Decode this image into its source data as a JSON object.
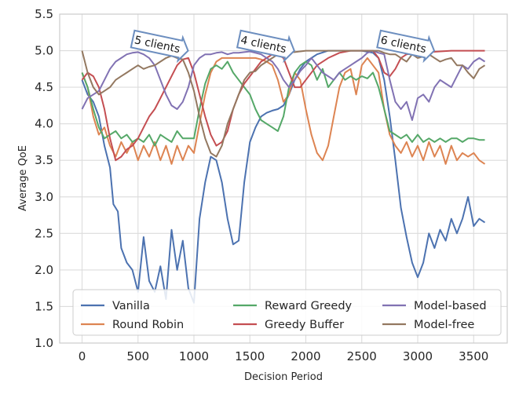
{
  "chart_data": {
    "type": "line",
    "xlabel": "Decision Period",
    "ylabel": "Average QoE",
    "xlim": [
      -200,
      3800
    ],
    "ylim": [
      1.0,
      5.5
    ],
    "xticks": [
      0,
      500,
      1000,
      1500,
      2000,
      2500,
      3000,
      3500
    ],
    "yticks": [
      1.0,
      1.5,
      2.0,
      2.5,
      3.0,
      3.5,
      4.0,
      4.5,
      5.0,
      5.5
    ],
    "grid": true,
    "legend": {
      "placement": "lower-center",
      "columns": 3
    },
    "annotations": [
      {
        "text": "5 clients",
        "x": 700,
        "y": 5.08
      },
      {
        "text": "4 clients",
        "x": 1650,
        "y": 5.08
      },
      {
        "text": "6 clients",
        "x": 2900,
        "y": 5.08
      }
    ],
    "series": [
      {
        "name": "Vanilla",
        "color": "#4c72b0",
        "x": [
          0,
          50,
          100,
          150,
          200,
          250,
          280,
          320,
          350,
          400,
          450,
          500,
          550,
          600,
          650,
          700,
          750,
          800,
          850,
          900,
          950,
          1000,
          1050,
          1100,
          1150,
          1200,
          1250,
          1300,
          1350,
          1400,
          1450,
          1500,
          1550,
          1600,
          1650,
          1700,
          1750,
          1800,
          1850,
          1900,
          1950,
          2000,
          2050,
          2100,
          2200,
          2300,
          2400,
          2500,
          2600,
          2650,
          2700,
          2750,
          2800,
          2850,
          2900,
          2950,
          3000,
          3050,
          3100,
          3150,
          3200,
          3250,
          3300,
          3350,
          3400,
          3450,
          3500,
          3550,
          3600
        ],
        "y": [
          4.6,
          4.4,
          4.3,
          4.1,
          3.7,
          3.4,
          2.9,
          2.8,
          2.3,
          2.1,
          2.0,
          1.7,
          2.45,
          1.85,
          1.7,
          2.05,
          1.6,
          2.55,
          2.0,
          2.4,
          1.75,
          1.55,
          2.7,
          3.2,
          3.55,
          3.5,
          3.2,
          2.7,
          2.35,
          2.4,
          3.2,
          3.75,
          3.95,
          4.1,
          4.15,
          4.18,
          4.2,
          4.25,
          4.4,
          4.6,
          4.75,
          4.85,
          4.9,
          4.95,
          5.0,
          5.0,
          5.0,
          5.0,
          4.97,
          4.9,
          4.6,
          4.1,
          3.5,
          2.85,
          2.45,
          2.1,
          1.9,
          2.1,
          2.5,
          2.3,
          2.55,
          2.4,
          2.7,
          2.5,
          2.7,
          3.0,
          2.6,
          2.7,
          2.65
        ]
      },
      {
        "name": "Round Robin",
        "color": "#dd8452",
        "x": [
          0,
          50,
          100,
          150,
          200,
          250,
          300,
          350,
          400,
          450,
          500,
          550,
          600,
          650,
          700,
          750,
          800,
          850,
          900,
          950,
          1000,
          1050,
          1100,
          1150,
          1200,
          1250,
          1300,
          1350,
          1400,
          1450,
          1500,
          1550,
          1600,
          1650,
          1700,
          1750,
          1800,
          1850,
          1900,
          1950,
          2000,
          2050,
          2100,
          2150,
          2200,
          2250,
          2300,
          2350,
          2400,
          2450,
          2500,
          2550,
          2600,
          2650,
          2700,
          2750,
          2800,
          2850,
          2900,
          2950,
          3000,
          3050,
          3100,
          3150,
          3200,
          3250,
          3300,
          3350,
          3400,
          3450,
          3500,
          3550,
          3600
        ],
        "y": [
          4.7,
          4.5,
          4.1,
          3.85,
          3.95,
          3.7,
          3.55,
          3.75,
          3.6,
          3.75,
          3.5,
          3.7,
          3.55,
          3.75,
          3.5,
          3.7,
          3.45,
          3.7,
          3.5,
          3.7,
          3.6,
          4.0,
          4.4,
          4.7,
          4.85,
          4.9,
          4.9,
          4.9,
          4.9,
          4.9,
          4.9,
          4.9,
          4.88,
          4.85,
          4.8,
          4.6,
          4.3,
          4.4,
          4.7,
          4.6,
          4.2,
          3.85,
          3.6,
          3.5,
          3.7,
          4.1,
          4.5,
          4.7,
          4.75,
          4.4,
          4.8,
          4.9,
          4.8,
          4.7,
          4.2,
          3.85,
          3.7,
          3.6,
          3.75,
          3.55,
          3.7,
          3.5,
          3.75,
          3.55,
          3.7,
          3.45,
          3.7,
          3.5,
          3.6,
          3.55,
          3.6,
          3.5,
          3.45
        ]
      },
      {
        "name": "Reward Greedy",
        "color": "#55a868",
        "x": [
          0,
          50,
          100,
          150,
          200,
          250,
          300,
          350,
          400,
          450,
          500,
          550,
          600,
          650,
          700,
          750,
          800,
          850,
          900,
          950,
          1000,
          1050,
          1100,
          1150,
          1200,
          1250,
          1300,
          1350,
          1400,
          1450,
          1500,
          1550,
          1600,
          1650,
          1700,
          1750,
          1800,
          1850,
          1900,
          1950,
          2000,
          2050,
          2100,
          2150,
          2200,
          2250,
          2300,
          2350,
          2400,
          2450,
          2500,
          2550,
          2600,
          2650,
          2700,
          2750,
          2800,
          2850,
          2900,
          2950,
          3000,
          3050,
          3100,
          3150,
          3200,
          3250,
          3300,
          3350,
          3400,
          3450,
          3500,
          3550,
          3600
        ],
        "y": [
          4.7,
          4.5,
          4.2,
          3.95,
          3.8,
          3.85,
          3.9,
          3.8,
          3.85,
          3.75,
          3.8,
          3.75,
          3.85,
          3.7,
          3.85,
          3.8,
          3.75,
          3.9,
          3.8,
          3.8,
          3.8,
          4.2,
          4.55,
          4.75,
          4.8,
          4.75,
          4.85,
          4.7,
          4.6,
          4.5,
          4.4,
          4.2,
          4.05,
          4.0,
          3.95,
          3.9,
          4.1,
          4.5,
          4.7,
          4.8,
          4.85,
          4.8,
          4.6,
          4.75,
          4.5,
          4.6,
          4.7,
          4.6,
          4.65,
          4.6,
          4.65,
          4.62,
          4.7,
          4.5,
          4.2,
          3.9,
          3.85,
          3.8,
          3.85,
          3.75,
          3.85,
          3.75,
          3.8,
          3.75,
          3.8,
          3.75,
          3.8,
          3.8,
          3.75,
          3.8,
          3.8,
          3.78,
          3.78
        ]
      },
      {
        "name": "Greedy Buffer",
        "color": "#c44e52",
        "x": [
          0,
          50,
          100,
          150,
          200,
          250,
          300,
          350,
          400,
          450,
          500,
          550,
          600,
          650,
          700,
          750,
          800,
          850,
          900,
          950,
          1000,
          1050,
          1100,
          1150,
          1200,
          1250,
          1300,
          1350,
          1400,
          1450,
          1500,
          1550,
          1600,
          1650,
          1700,
          1750,
          1800,
          1850,
          1900,
          1950,
          2000,
          2100,
          2200,
          2300,
          2400,
          2500,
          2600,
          2650,
          2700,
          2750,
          2800,
          2850,
          2900,
          3000,
          3100,
          3200,
          3300,
          3400,
          3500,
          3600
        ],
        "y": [
          4.6,
          4.7,
          4.65,
          4.5,
          4.2,
          3.8,
          3.5,
          3.55,
          3.65,
          3.7,
          3.8,
          3.95,
          4.1,
          4.2,
          4.35,
          4.5,
          4.65,
          4.8,
          4.88,
          4.9,
          4.7,
          4.4,
          4.1,
          3.85,
          3.7,
          3.75,
          3.9,
          4.2,
          4.4,
          4.55,
          4.65,
          4.75,
          4.85,
          4.9,
          4.95,
          4.95,
          4.9,
          4.7,
          4.5,
          4.5,
          4.6,
          4.8,
          4.9,
          4.97,
          5.0,
          5.0,
          5.0,
          4.9,
          4.7,
          4.65,
          4.75,
          4.9,
          4.95,
          4.97,
          4.98,
          4.99,
          5.0,
          5.0,
          5.0,
          5.0
        ]
      },
      {
        "name": "Model-based",
        "color": "#8172b3",
        "x": [
          0,
          50,
          100,
          150,
          200,
          250,
          300,
          350,
          400,
          450,
          500,
          550,
          600,
          650,
          700,
          750,
          800,
          850,
          900,
          950,
          1000,
          1050,
          1100,
          1150,
          1200,
          1250,
          1300,
          1350,
          1400,
          1450,
          1500,
          1550,
          1600,
          1650,
          1700,
          1750,
          1800,
          1850,
          1900,
          1950,
          2000,
          2050,
          2100,
          2150,
          2200,
          2250,
          2300,
          2350,
          2400,
          2450,
          2500,
          2550,
          2600,
          2650,
          2700,
          2750,
          2800,
          2850,
          2900,
          2950,
          3000,
          3050,
          3100,
          3150,
          3200,
          3250,
          3300,
          3350,
          3400,
          3450,
          3500,
          3550,
          3600
        ],
        "y": [
          4.2,
          4.35,
          4.4,
          4.45,
          4.6,
          4.75,
          4.85,
          4.9,
          4.95,
          4.97,
          4.98,
          4.95,
          4.9,
          4.8,
          4.6,
          4.4,
          4.25,
          4.2,
          4.3,
          4.5,
          4.8,
          4.9,
          4.95,
          4.95,
          4.97,
          4.98,
          4.95,
          4.97,
          4.97,
          4.98,
          4.99,
          4.97,
          4.95,
          4.9,
          4.85,
          4.75,
          4.6,
          4.5,
          4.6,
          4.72,
          4.8,
          4.9,
          4.8,
          4.7,
          4.65,
          4.6,
          4.7,
          4.75,
          4.8,
          4.85,
          4.9,
          4.97,
          5.0,
          4.97,
          4.95,
          4.6,
          4.3,
          4.2,
          4.3,
          4.05,
          4.35,
          4.4,
          4.3,
          4.5,
          4.6,
          4.55,
          4.5,
          4.65,
          4.8,
          4.75,
          4.85,
          4.9,
          4.85
        ]
      },
      {
        "name": "Model-free",
        "color": "#937860",
        "x": [
          0,
          50,
          100,
          150,
          200,
          250,
          300,
          350,
          400,
          450,
          500,
          550,
          600,
          650,
          700,
          750,
          800,
          850,
          900,
          950,
          1000,
          1050,
          1100,
          1150,
          1200,
          1250,
          1300,
          1350,
          1400,
          1450,
          1500,
          1550,
          1600,
          1650,
          1700,
          1750,
          1800,
          1850,
          1900,
          1950,
          2000,
          2050,
          2100,
          2150,
          2200,
          2300,
          2400,
          2500,
          2600,
          2650,
          2700,
          2750,
          2800,
          2850,
          2900,
          2950,
          3000,
          3050,
          3100,
          3150,
          3200,
          3250,
          3300,
          3350,
          3400,
          3450,
          3500,
          3550,
          3600
        ],
        "y": [
          5.0,
          4.7,
          4.5,
          4.4,
          4.45,
          4.5,
          4.6,
          4.65,
          4.7,
          4.75,
          4.8,
          4.75,
          4.78,
          4.8,
          4.85,
          4.9,
          4.93,
          4.9,
          4.88,
          4.7,
          4.45,
          4.1,
          3.8,
          3.6,
          3.55,
          3.7,
          4.0,
          4.2,
          4.4,
          4.6,
          4.7,
          4.72,
          4.8,
          4.85,
          4.9,
          4.95,
          4.97,
          4.98,
          4.98,
          4.99,
          5.0,
          5.0,
          5.0,
          5.0,
          5.0,
          5.0,
          5.0,
          5.0,
          5.0,
          5.0,
          4.97,
          4.95,
          4.95,
          4.9,
          4.85,
          4.95,
          4.9,
          4.92,
          4.95,
          4.9,
          4.85,
          4.88,
          4.9,
          4.8,
          4.8,
          4.7,
          4.62,
          4.75,
          4.8
        ]
      }
    ]
  }
}
